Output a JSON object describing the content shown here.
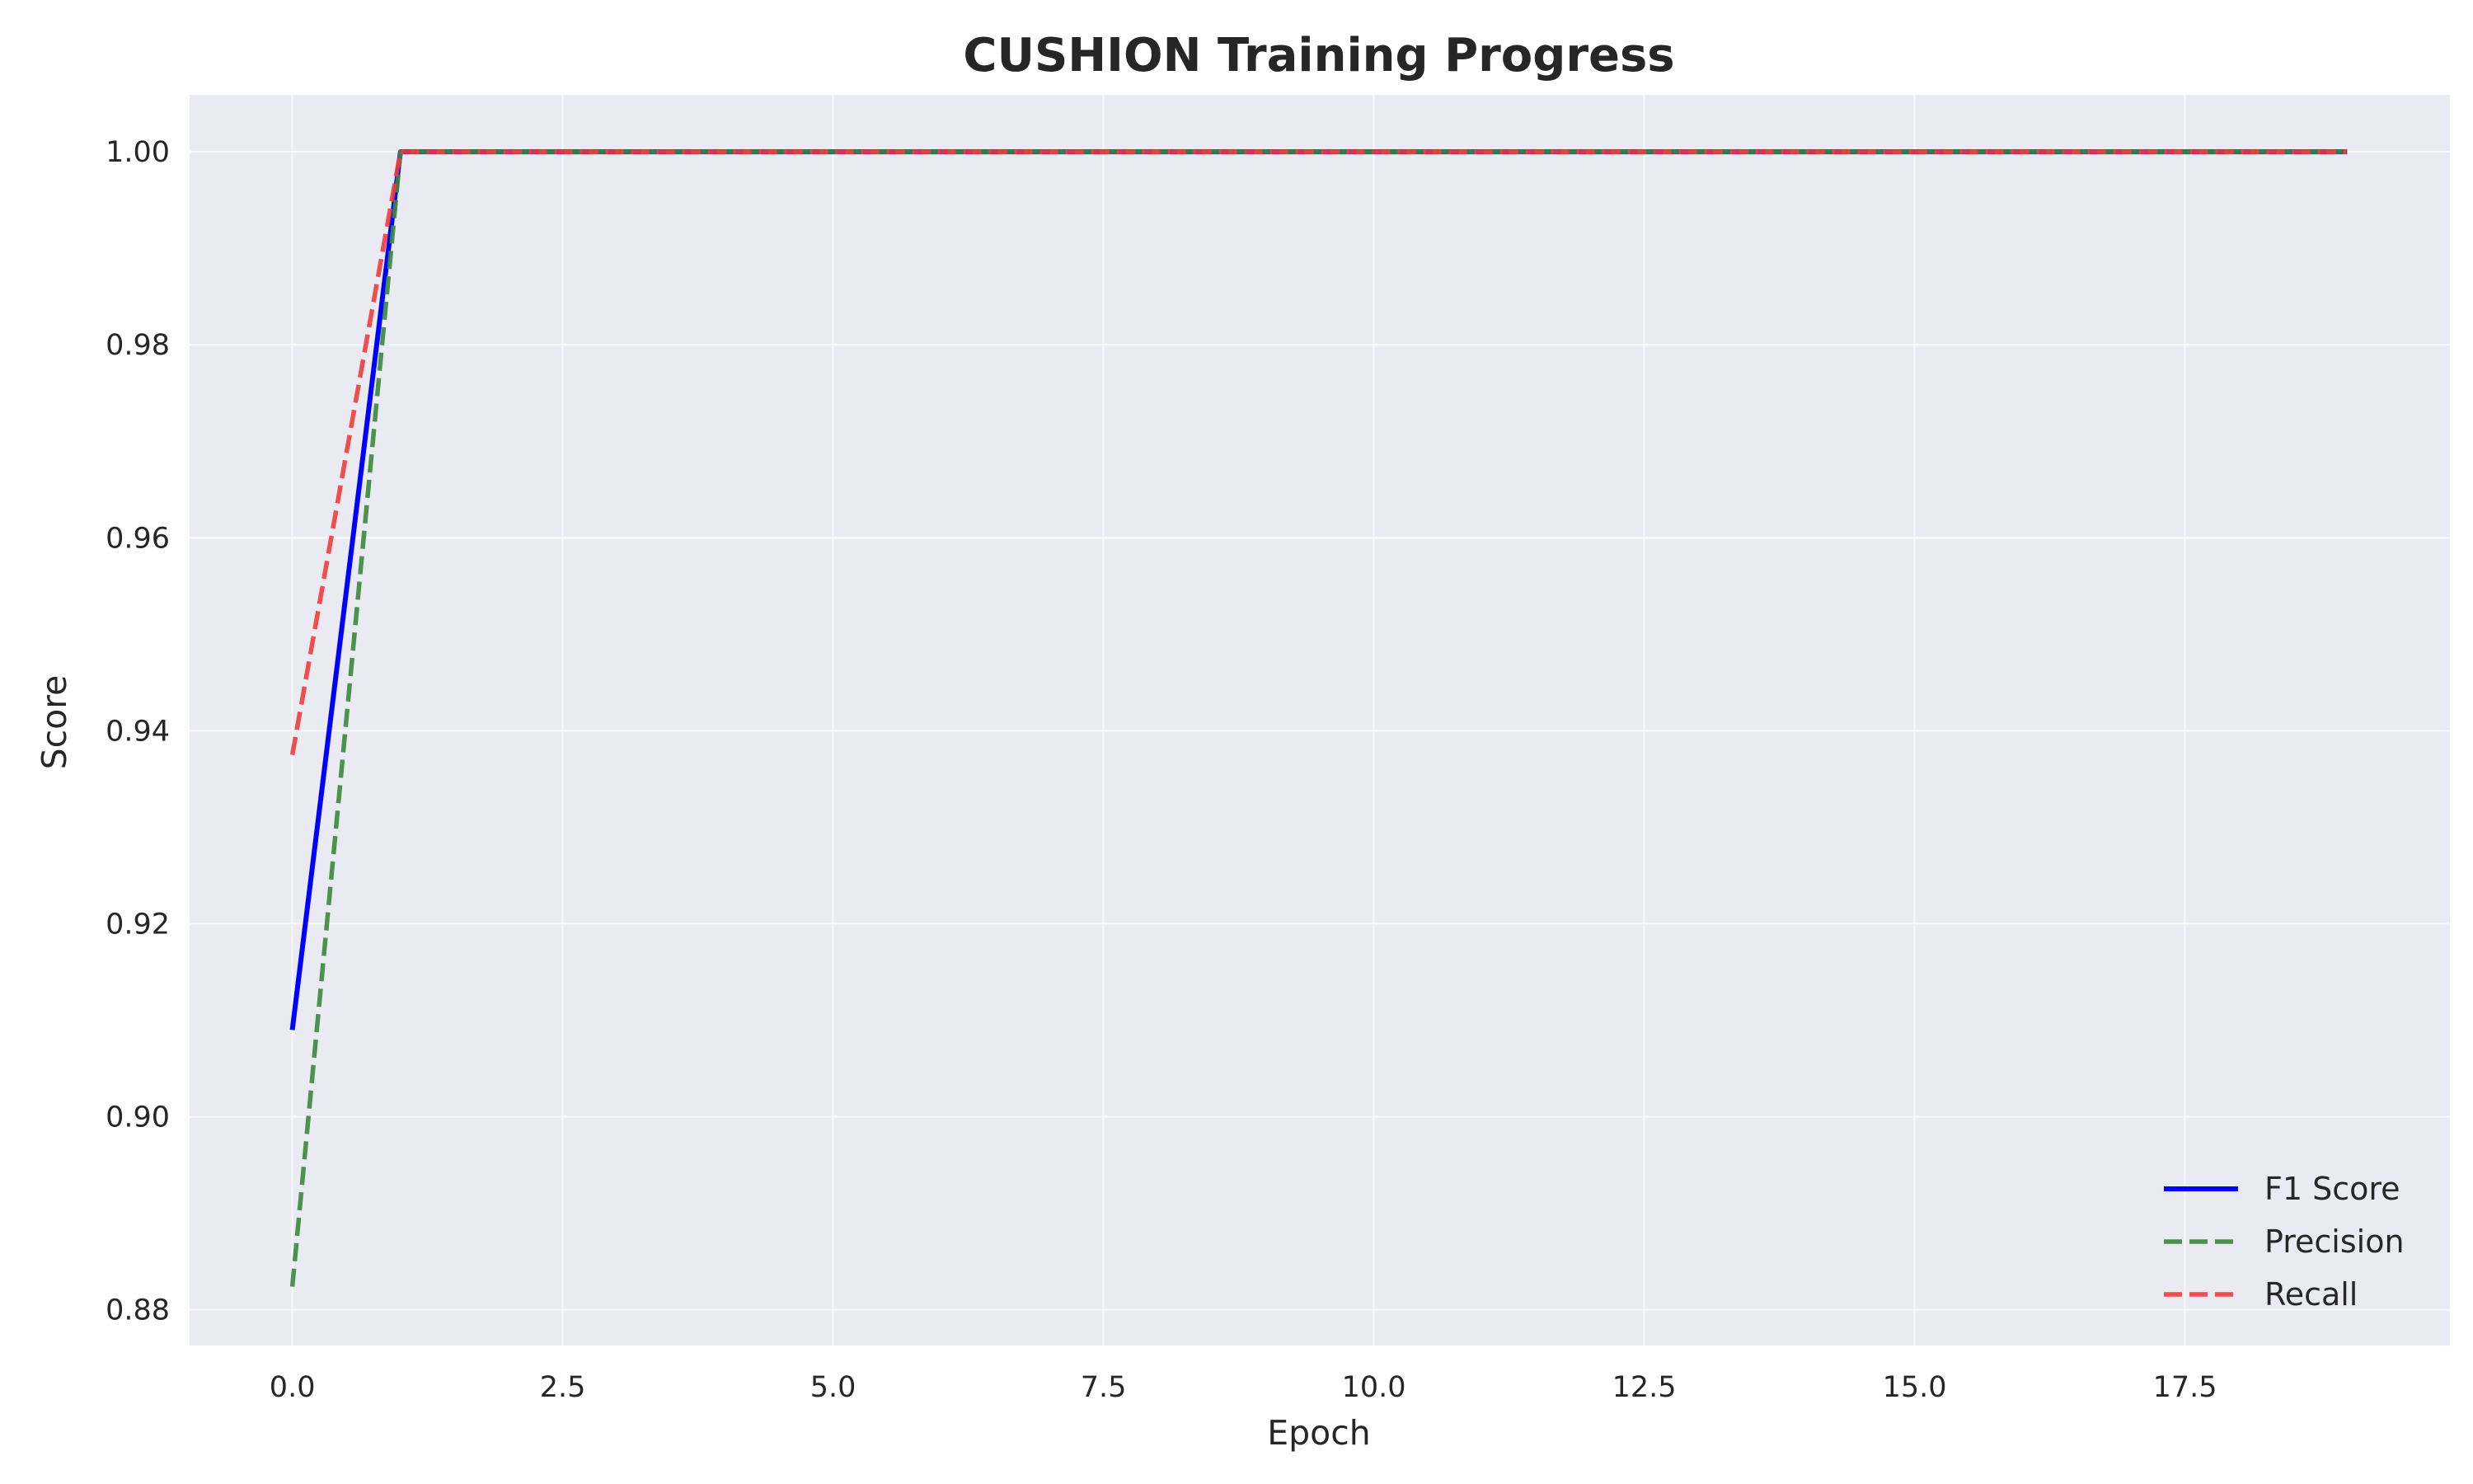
{
  "chart_data": {
    "type": "line",
    "title": "CUSHION Training Progress",
    "xlabel": "Epoch",
    "ylabel": "Score",
    "xlim": [
      -0.95,
      19.95
    ],
    "ylim": [
      0.8763,
      1.0059
    ],
    "x_ticks": [
      0.0,
      2.5,
      5.0,
      7.5,
      10.0,
      12.5,
      15.0,
      17.5
    ],
    "x_tick_labels": [
      "0.0",
      "2.5",
      "5.0",
      "7.5",
      "10.0",
      "12.5",
      "15.0",
      "17.5"
    ],
    "y_ticks": [
      0.88,
      0.9,
      0.92,
      0.94,
      0.96,
      0.98,
      1.0
    ],
    "y_tick_labels": [
      "0.88",
      "0.90",
      "0.92",
      "0.94",
      "0.96",
      "0.98",
      "1.00"
    ],
    "grid": true,
    "legend_position": "lower-right",
    "x": [
      0,
      1,
      2,
      3,
      4,
      5,
      6,
      7,
      8,
      9,
      10,
      11,
      12,
      13,
      14,
      15,
      16,
      17,
      18,
      19
    ],
    "series": [
      {
        "name": "F1 Score",
        "color": "#0000ff",
        "style": "solid",
        "values": [
          0.909,
          1.0,
          1.0,
          1.0,
          1.0,
          1.0,
          1.0,
          1.0,
          1.0,
          1.0,
          1.0,
          1.0,
          1.0,
          1.0,
          1.0,
          1.0,
          1.0,
          1.0,
          1.0,
          1.0
        ]
      },
      {
        "name": "Precision",
        "color": "#3a8a3a",
        "style": "dashed",
        "values": [
          0.8824,
          1.0,
          1.0,
          1.0,
          1.0,
          1.0,
          1.0,
          1.0,
          1.0,
          1.0,
          1.0,
          1.0,
          1.0,
          1.0,
          1.0,
          1.0,
          1.0,
          1.0,
          1.0,
          1.0
        ]
      },
      {
        "name": "Recall",
        "color": "#f03c3c",
        "style": "dashed",
        "values": [
          0.9375,
          1.0,
          1.0,
          1.0,
          1.0,
          1.0,
          1.0,
          1.0,
          1.0,
          1.0,
          1.0,
          1.0,
          1.0,
          1.0,
          1.0,
          1.0,
          1.0,
          1.0,
          1.0,
          1.0
        ]
      }
    ],
    "colors": {
      "plot_background": "#eaeaf2",
      "grid": "#ffffff",
      "text": "#262626"
    }
  }
}
